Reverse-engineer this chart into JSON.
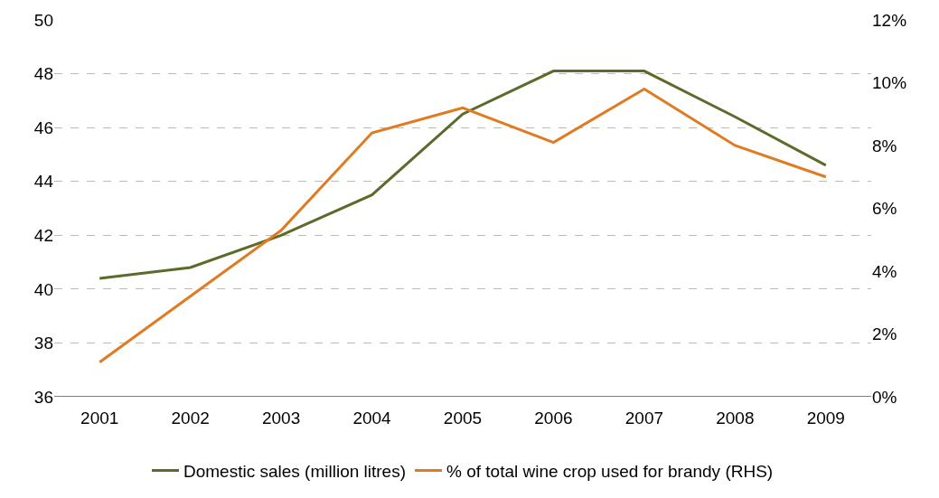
{
  "chart_data": {
    "type": "line",
    "categories": [
      "2001",
      "2002",
      "2003",
      "2004",
      "2005",
      "2006",
      "2007",
      "2008",
      "2009"
    ],
    "series": [
      {
        "name": "Domestic sales (million litres)",
        "color": "#5b6b2b",
        "values": [
          40.4,
          40.8,
          42.0,
          43.5,
          46.5,
          48.1,
          48.1,
          46.4,
          44.6
        ]
      },
      {
        "name": "% of total wine crop used for brandy (RHS)",
        "color": "#e07b22",
        "axis": "y2",
        "values": [
          1.1,
          3.2,
          5.3,
          8.4,
          9.2,
          8.1,
          9.8,
          8.0,
          7.0
        ]
      }
    ],
    "ylim": [
      36,
      50
    ],
    "yticks": [
      36,
      38,
      40,
      42,
      44,
      46,
      48,
      50
    ],
    "y2lim": [
      0,
      12
    ],
    "y2ticks": [
      {
        "value": 0,
        "label": "0%"
      },
      {
        "value": 2,
        "label": "2%"
      },
      {
        "value": 4,
        "label": "4%"
      },
      {
        "value": 6,
        "label": "6%"
      },
      {
        "value": 8,
        "label": "8%"
      },
      {
        "value": 10,
        "label": "10%"
      },
      {
        "value": 12,
        "label": "12%"
      }
    ],
    "grid": "y",
    "legend": "bottom",
    "marker": "none",
    "line_style": "solid"
  }
}
